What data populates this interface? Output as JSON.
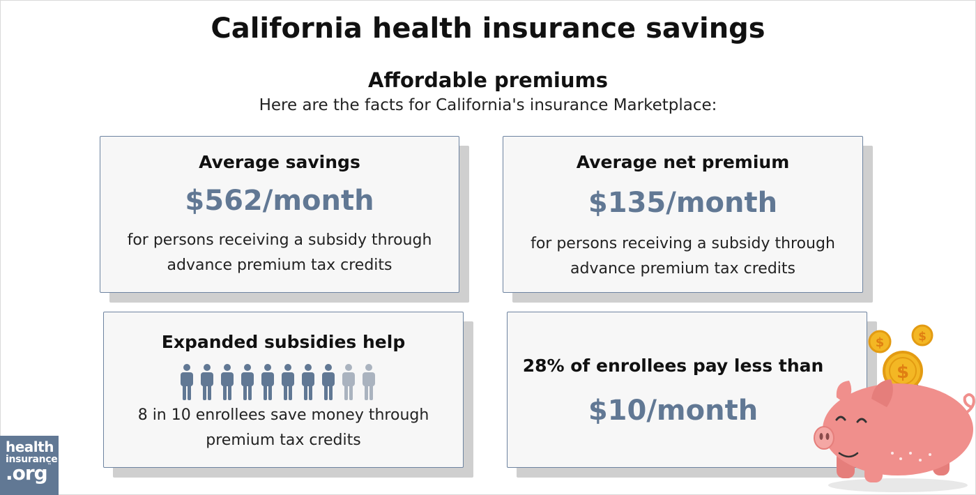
{
  "page": {
    "title": "California health insurance savings",
    "subtitle": "Affordable premiums",
    "intro": "Here are the facts for California's insurance Marketplace:"
  },
  "cards": {
    "savings": {
      "heading": "Average savings",
      "amount": "$562/month",
      "line1": "for persons receiving a subsidy through",
      "line2": "advance premium tax credits"
    },
    "net_premium": {
      "heading": "Average net premium",
      "amount": "$135/month",
      "line1": "for persons receiving a subsidy through",
      "line2": "advance premium tax credits"
    },
    "subsidies": {
      "heading": "Expanded subsidies help",
      "people_highlighted": 8,
      "people_total": 10,
      "line1": "8 in 10 enrollees save money through",
      "line2": "premium tax credits"
    },
    "low_cost": {
      "heading": "28% of enrollees pay less than",
      "amount": "$10/month"
    }
  },
  "logo": {
    "line1": "health",
    "line2": "insurance",
    "line3": ".org",
    "trademark": "™"
  },
  "colors": {
    "accent": "#617894",
    "person_highlight": "#617894",
    "person_muted": "#aab3bf",
    "pig": "#f08f8c",
    "coin": "#f3b724"
  },
  "icons": {
    "people": "person-icon",
    "mascot": "piggy-bank-icon",
    "coins": "dollar-coin-icon"
  }
}
